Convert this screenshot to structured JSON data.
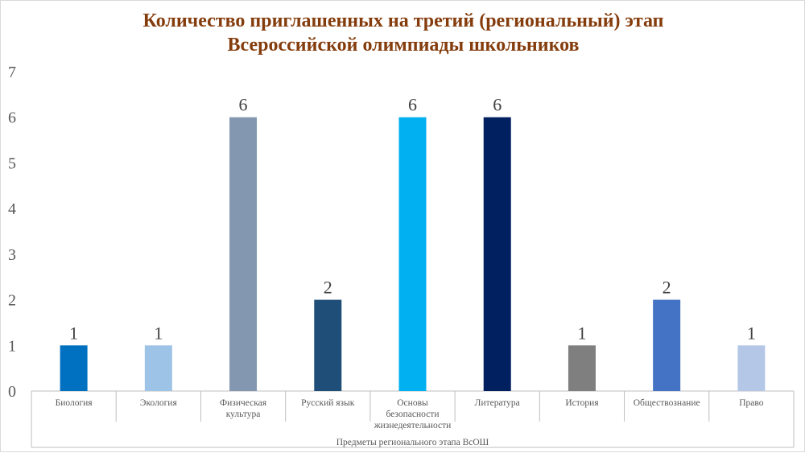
{
  "chart_data": {
    "type": "bar",
    "title_lines": [
      "Количество приглашенных на третий (региональный) этап",
      "Всероссийской олимпиады школьников"
    ],
    "xlabel": "Предметы регионального этапа ВсОШ",
    "ylabel": "",
    "ylim": [
      0,
      7
    ],
    "yticks": [
      "0",
      "1",
      "2",
      "3",
      "4",
      "5",
      "6",
      "7"
    ],
    "grid": false,
    "legend": "none",
    "categories": [
      [
        "Биология"
      ],
      [
        "Экология"
      ],
      [
        "Физическая",
        "культура"
      ],
      [
        "Русский язык"
      ],
      [
        "Основы",
        "безопасности",
        "жизнедеятельности"
      ],
      [
        "Литература"
      ],
      [
        "История"
      ],
      [
        "Обществознание"
      ],
      [
        "Право"
      ]
    ],
    "values": [
      1,
      1,
      6,
      2,
      6,
      6,
      1,
      2,
      1
    ],
    "data_labels": [
      "1",
      "1",
      "6",
      "2",
      "6",
      "6",
      "1",
      "2",
      "1"
    ],
    "colors": [
      "#0070c0",
      "#9dc3e6",
      "#8497b0",
      "#1f4e79",
      "#00b0f0",
      "#002060",
      "#7f7f7f",
      "#4472c4",
      "#b4c7e7"
    ],
    "axis_color": "#bfbfbf"
  }
}
